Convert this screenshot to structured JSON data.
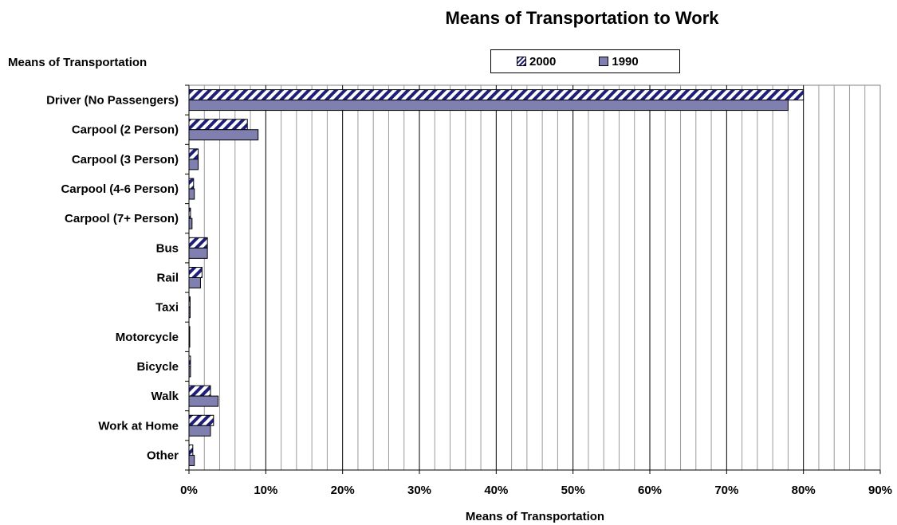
{
  "chart_data": {
    "type": "bar",
    "orientation": "horizontal",
    "title": "Means of Transportation to Work",
    "ylabel": "Means of Transportation",
    "xlabel": "Means of Transportation",
    "categories": [
      "Driver (No Passengers)",
      "Carpool (2 Person)",
      "Carpool (3 Person)",
      "Carpool (4-6 Person)",
      "Carpool (7+ Person)",
      "Bus",
      "Rail",
      "Taxi",
      "Motorcycle",
      "Bicycle",
      "Walk",
      "Work at Home",
      "Other"
    ],
    "series": [
      {
        "name": "2000",
        "values": [
          80,
          7.6,
          1.2,
          0.6,
          0.2,
          2.4,
          1.7,
          0.15,
          0.1,
          0.2,
          2.8,
          3.2,
          0.5
        ]
      },
      {
        "name": "1990",
        "values": [
          78,
          9.0,
          1.2,
          0.7,
          0.4,
          2.4,
          1.5,
          0.15,
          0.1,
          0.2,
          3.8,
          2.8,
          0.7
        ]
      }
    ],
    "xlim": [
      0,
      90
    ],
    "tick_labels": [
      "0%",
      "10%",
      "20%",
      "30%",
      "40%",
      "50%",
      "60%",
      "70%",
      "80%",
      "90%"
    ],
    "grid": true,
    "legend": "top",
    "colors": {
      "2000": "#1f1f7a",
      "1990": "#7f7fb0"
    }
  }
}
